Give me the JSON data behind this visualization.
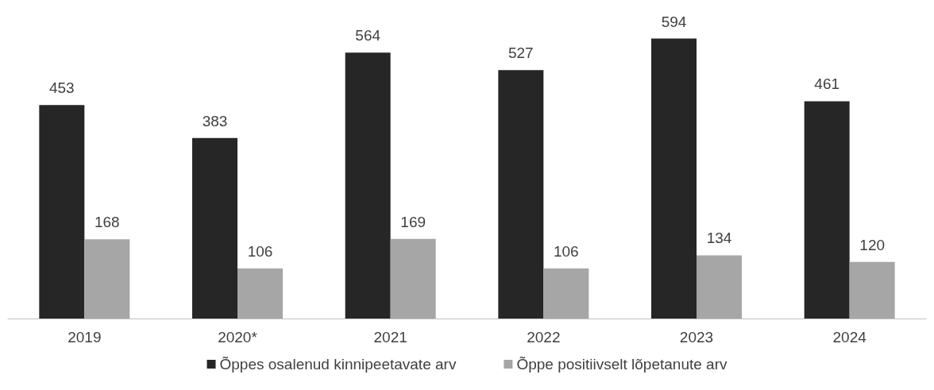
{
  "chart_data": {
    "type": "bar",
    "categories": [
      "2019",
      "2020*",
      "2021",
      "2022",
      "2023",
      "2024"
    ],
    "series": [
      {
        "name": "Õppes osalenud kinnipeetavate arv",
        "color": "#262626",
        "values": [
          453,
          383,
          564,
          527,
          594,
          461
        ]
      },
      {
        "name": "Õppe positiivselt lõpetanute arv",
        "color": "#a6a6a6",
        "values": [
          168,
          106,
          169,
          106,
          134,
          120
        ]
      }
    ],
    "data_labels": true,
    "legend": "bottom"
  }
}
